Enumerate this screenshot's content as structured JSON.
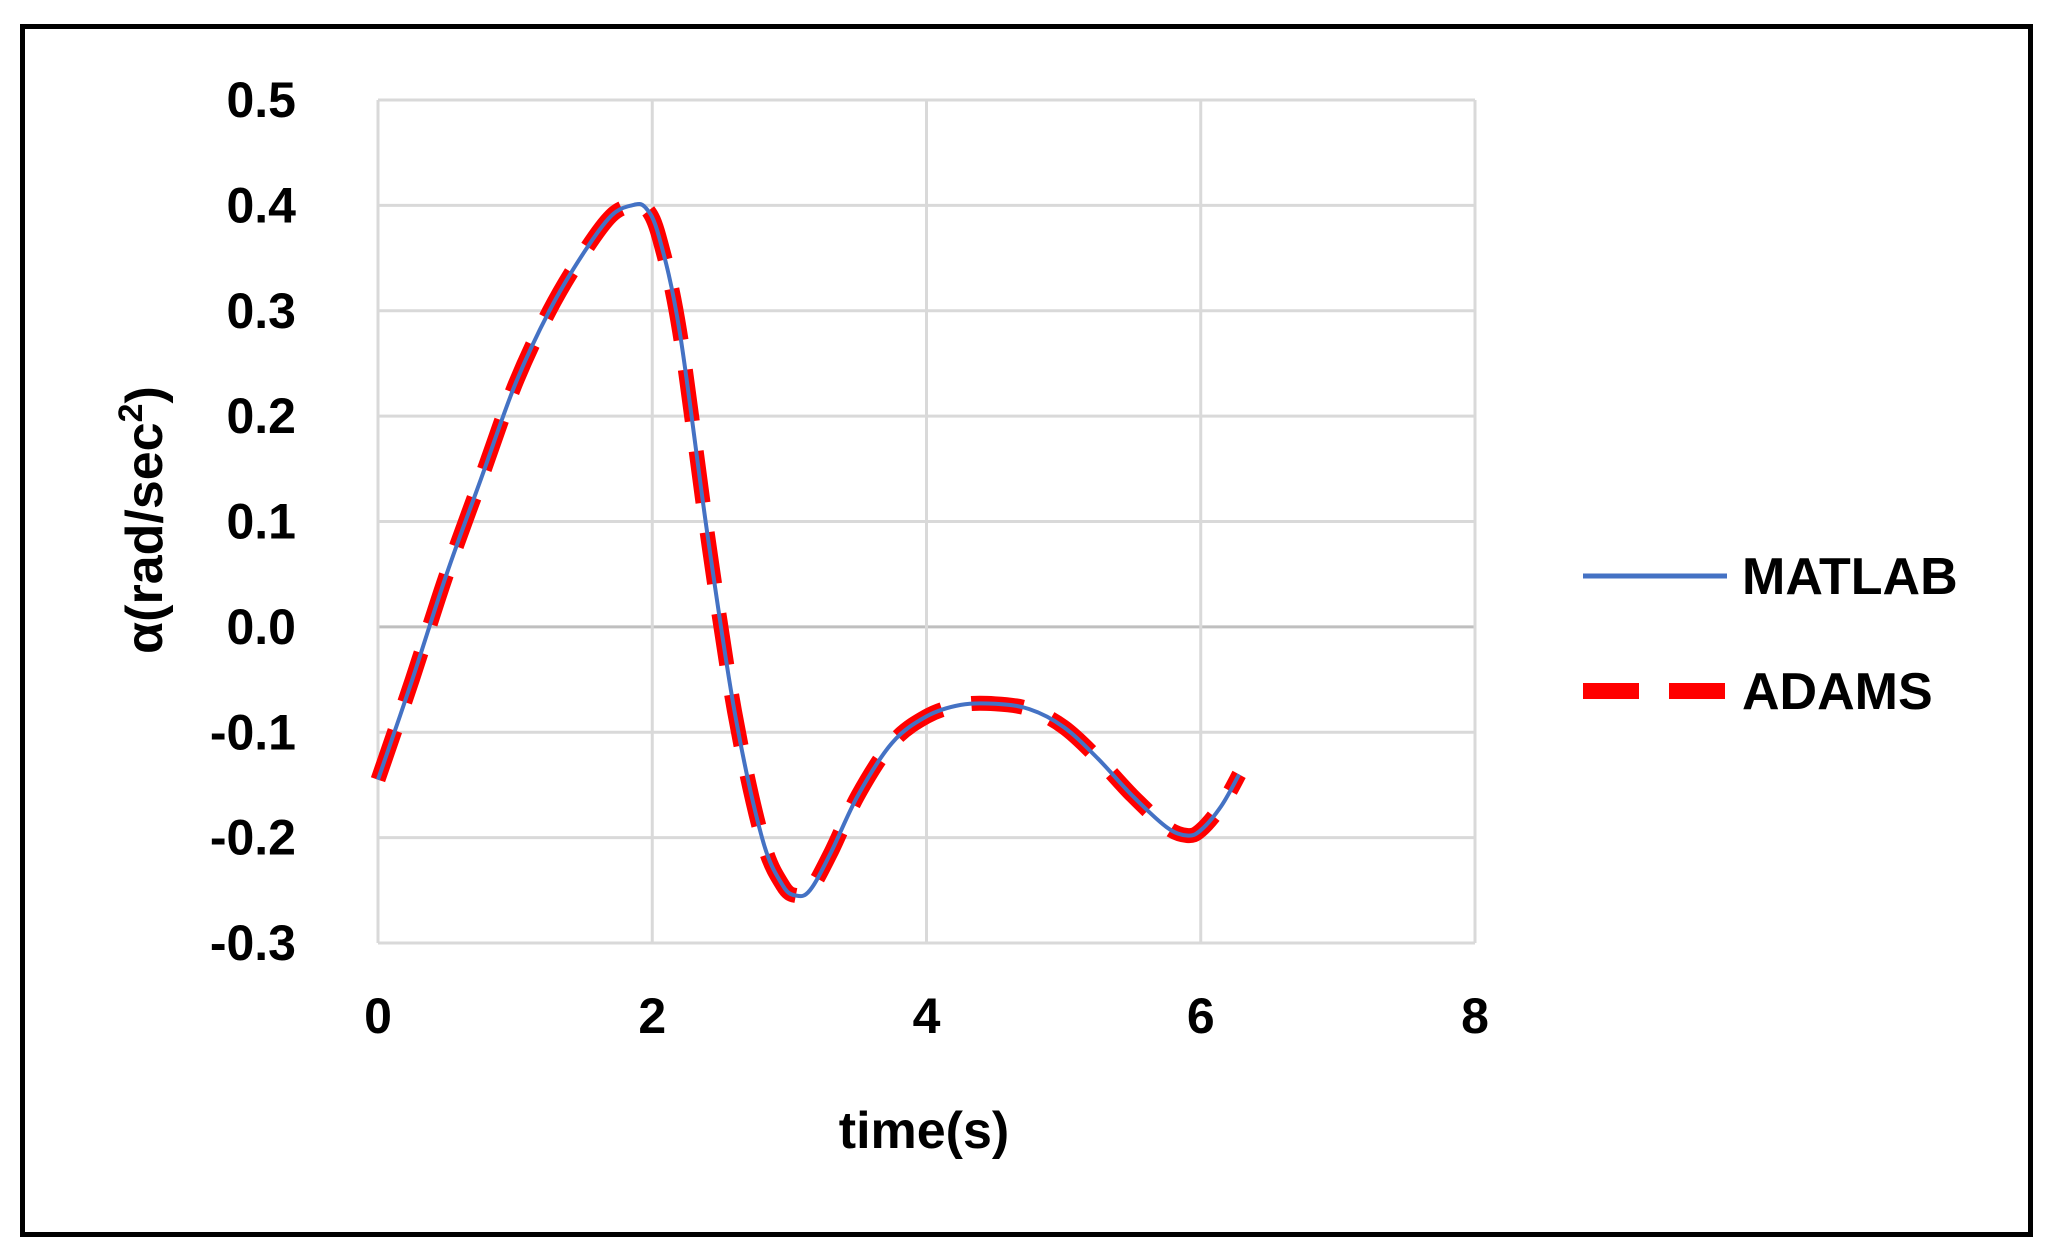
{
  "colors": {
    "matlab": "#4472C4",
    "adams": "#FF0000",
    "grid": "#D9D9D9"
  },
  "chart_data": {
    "type": "line",
    "title": "",
    "xlabel": "time(s)",
    "ylabel": {
      "main": "α(rad/sec",
      "sup": "2",
      "close": ")"
    },
    "xlim": [
      0,
      8
    ],
    "ylim": [
      -0.3,
      0.5
    ],
    "xticks": [
      "0",
      "2",
      "4",
      "6",
      "8"
    ],
    "yticks": [
      "-0.3",
      "-0.2",
      "-0.1",
      "0.0",
      "0.1",
      "0.2",
      "0.3",
      "0.4",
      "0.5"
    ],
    "grid": true,
    "legend_position": "right",
    "series": [
      {
        "name": "MATLAB",
        "style": "solid",
        "x": [
          0,
          0.25,
          0.5,
          0.75,
          1.0,
          1.25,
          1.5,
          1.7,
          1.85,
          1.95,
          2.05,
          2.2,
          2.4,
          2.6,
          2.8,
          2.95,
          3.05,
          3.15,
          3.3,
          3.5,
          3.75,
          4.0,
          4.25,
          4.5,
          4.75,
          5.0,
          5.25,
          5.5,
          5.75,
          5.9,
          6.0,
          6.15,
          6.28
        ],
        "y": [
          -0.145,
          -0.05,
          0.05,
          0.14,
          0.23,
          0.3,
          0.355,
          0.39,
          0.4,
          0.398,
          0.37,
          0.28,
          0.09,
          -0.08,
          -0.2,
          -0.245,
          -0.255,
          -0.25,
          -0.215,
          -0.16,
          -0.11,
          -0.085,
          -0.074,
          -0.073,
          -0.078,
          -0.095,
          -0.125,
          -0.16,
          -0.19,
          -0.198,
          -0.193,
          -0.17,
          -0.14
        ]
      },
      {
        "name": "ADAMS",
        "style": "dashed",
        "x": [
          0,
          0.25,
          0.5,
          0.75,
          1.0,
          1.25,
          1.5,
          1.7,
          1.85,
          1.95,
          2.05,
          2.2,
          2.4,
          2.6,
          2.8,
          2.95,
          3.05,
          3.15,
          3.3,
          3.5,
          3.75,
          4.0,
          4.25,
          4.5,
          4.75,
          5.0,
          5.25,
          5.5,
          5.75,
          5.9,
          6.0,
          6.15,
          6.28
        ],
        "y": [
          -0.145,
          -0.05,
          0.05,
          0.14,
          0.23,
          0.3,
          0.355,
          0.39,
          0.4,
          0.398,
          0.37,
          0.28,
          0.09,
          -0.08,
          -0.2,
          -0.245,
          -0.255,
          -0.25,
          -0.215,
          -0.16,
          -0.11,
          -0.085,
          -0.074,
          -0.073,
          -0.078,
          -0.095,
          -0.125,
          -0.16,
          -0.19,
          -0.198,
          -0.193,
          -0.17,
          -0.14
        ]
      }
    ]
  }
}
